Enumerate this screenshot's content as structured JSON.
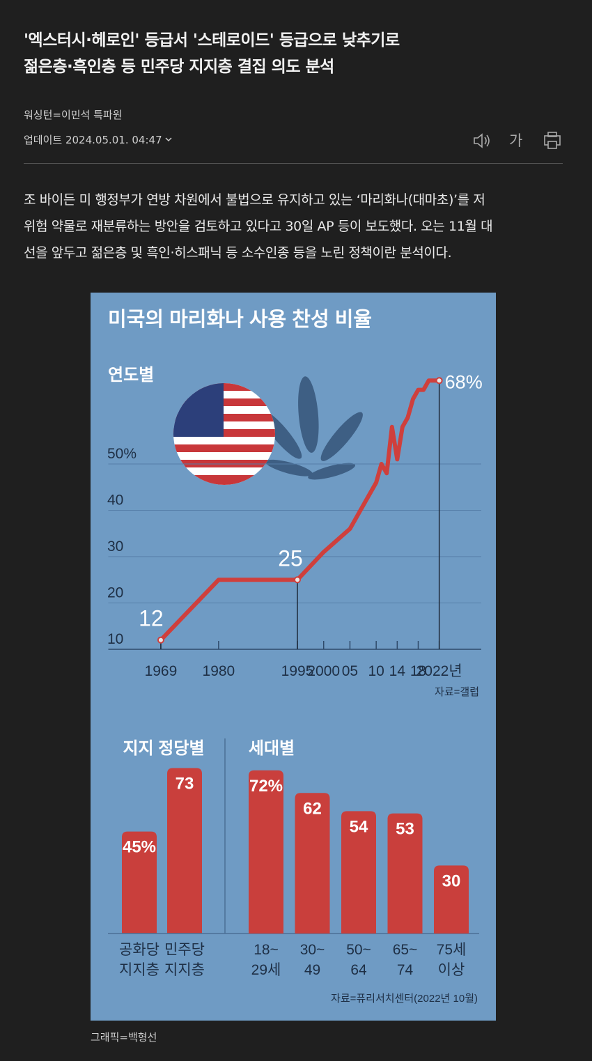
{
  "header": {
    "title": [
      "'엑스터시·헤로인' 등급서 '스테로이드' 등급으로 낮추기로",
      "젊은층·흑인층 등 민주당 지지층 결집 의도 분석"
    ],
    "byline": "워싱턴=이민석 특파원",
    "updated": "업데이트 2024.05.01. 04:47"
  },
  "toolbar": {
    "font_size": "가"
  },
  "body": {
    "paragraph": [
      "조 바이든 미 행정부가 연방 차원에서 불법으로 유지하고 있는 ‘마리화나(대마초)’를 저",
      "위험 약물로 재분류하는 방안을 검토하고 있다고 30일 AP 등이 보도했다. 오는 11월 대",
      "선을 앞두고 젊은층 및 흑인·히스패닉 등 소수인종 등을 노린 정책이란 분석이다."
    ]
  },
  "infographic": {
    "title": "미국의 마리화나 사용 찬성 비율",
    "credit": "그래픽=백형선"
  },
  "chart_data": [
    {
      "type": "line",
      "title": "연도별",
      "color": "#cf3f3c",
      "x": [
        1969,
        1980,
        1995,
        2000,
        2005,
        2009,
        2010,
        2011,
        2012,
        2013,
        2014,
        2015,
        2016,
        2017,
        2018,
        2019,
        2020,
        2021,
        2022
      ],
      "values": [
        12,
        25,
        25,
        31,
        36,
        44,
        46,
        50,
        48,
        58,
        51,
        58,
        60,
        64,
        66,
        66,
        68,
        68,
        68
      ],
      "value_labels": [
        "12",
        null,
        "25",
        null,
        null,
        null,
        null,
        null,
        null,
        null,
        null,
        null,
        null,
        null,
        null,
        null,
        null,
        null,
        "68%"
      ],
      "xlim": [
        1959,
        2030
      ],
      "xticks": [
        1969,
        1980,
        1995,
        2000,
        {
          "value": 2005,
          "label": "05"
        },
        {
          "value": 2010,
          "label": "10"
        },
        {
          "value": 2014,
          "label": "14"
        },
        {
          "value": 2018,
          "label": "18"
        },
        {
          "value": 2022,
          "label": "2022년"
        }
      ],
      "ylim": [
        10,
        70
      ],
      "yticks": [
        10,
        20,
        30,
        40,
        {
          "value": 50,
          "label": "50%"
        }
      ],
      "grid": true,
      "source": "자료=갤럽"
    },
    {
      "type": "bar",
      "title": "지지 정당별",
      "color": "#c93f3c",
      "categories": [
        [
          "공화당",
          "지지층"
        ],
        [
          "민주당",
          "지지층"
        ]
      ],
      "values": [
        45,
        73
      ],
      "value_labels": [
        "45%",
        "73"
      ],
      "ylim": [
        0,
        75
      ]
    },
    {
      "type": "bar",
      "title": "세대별",
      "color": "#c93f3c",
      "categories": [
        [
          "18~",
          "29세"
        ],
        [
          "30~",
          "49"
        ],
        [
          "50~",
          "64"
        ],
        [
          "65~",
          "74"
        ],
        [
          "75세",
          "이상"
        ]
      ],
      "values": [
        72,
        62,
        54,
        53,
        30
      ],
      "value_labels": [
        "72%",
        "62",
        "54",
        "53",
        "30"
      ],
      "ylim": [
        0,
        75
      ],
      "source": "자료=퓨리서치센터(2022년 10월)"
    }
  ]
}
